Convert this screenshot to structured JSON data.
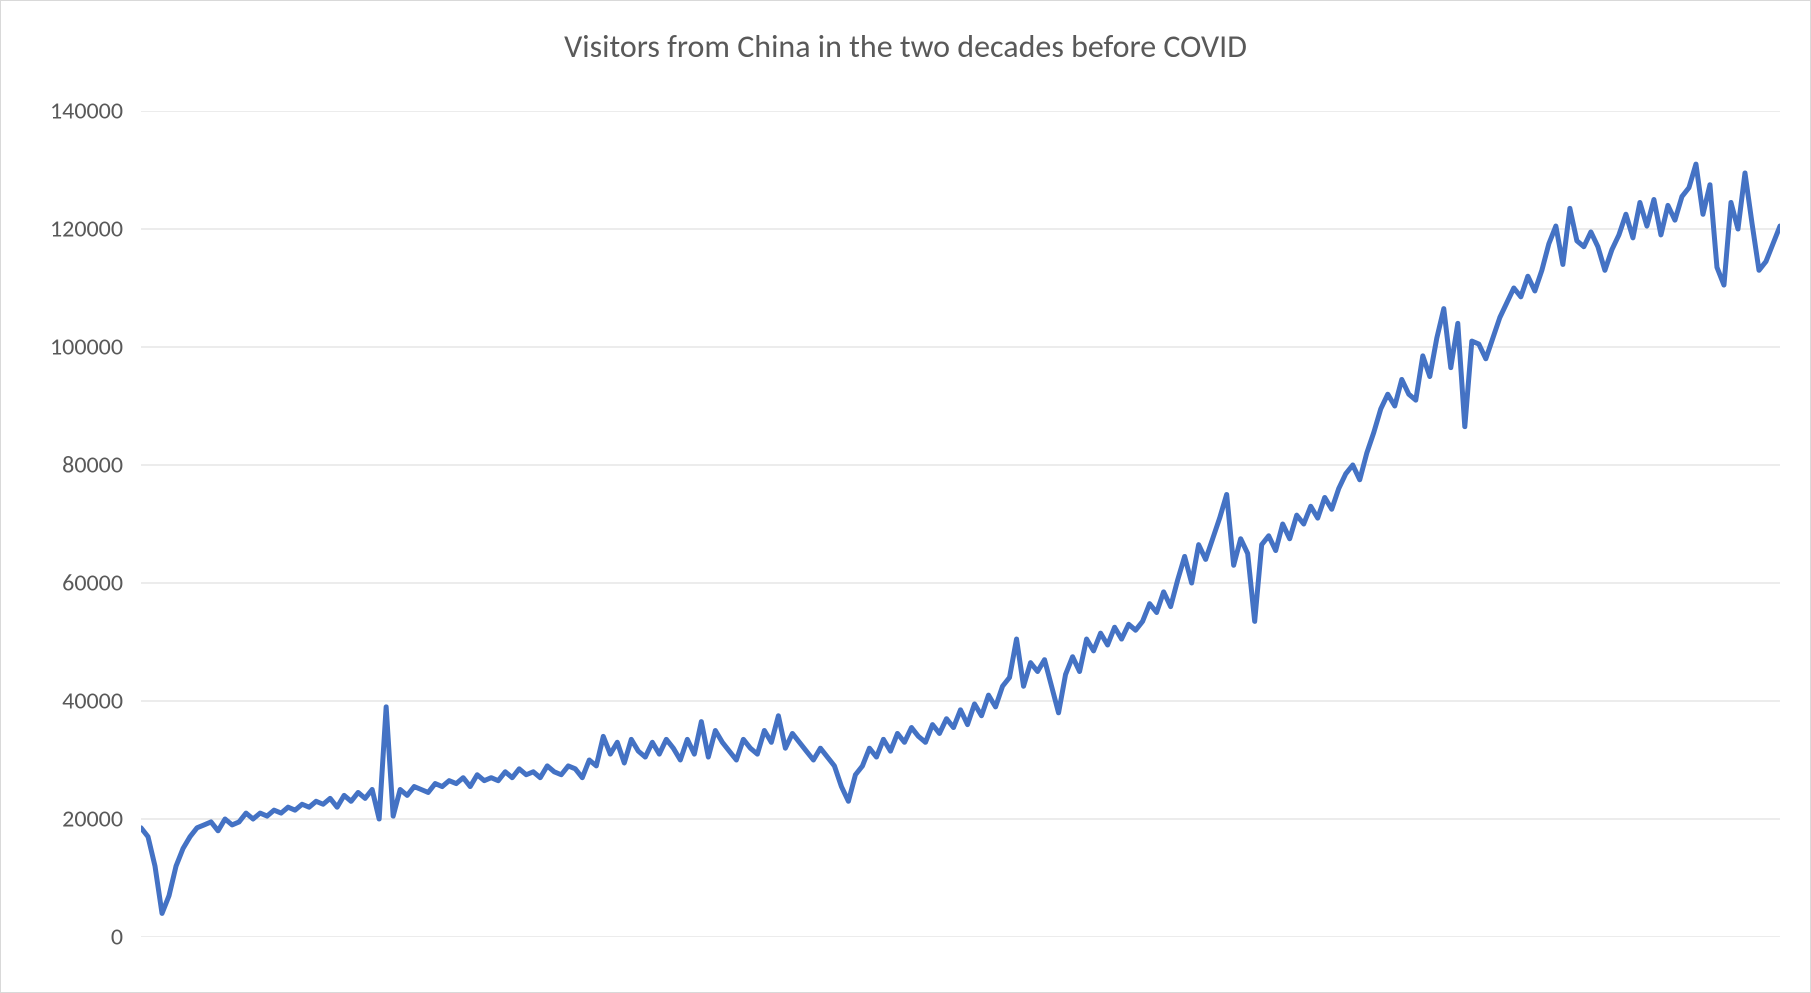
{
  "chart": {
    "type": "line",
    "title": "Visitors from China in the two decades before COVID",
    "title_fontsize": 32,
    "title_color": "#595959",
    "background_color": "#ffffff",
    "border_color": "#d9d9d9",
    "grid_color": "#d9d9d9",
    "axis_label_color": "#595959",
    "axis_label_fontsize": 24,
    "line_color": "#4472c4",
    "line_width": 5,
    "ylim": [
      0,
      140000
    ],
    "ytick_step": 20000,
    "ytick_labels": [
      "0",
      "20000",
      "40000",
      "60000",
      "80000",
      "100000",
      "120000",
      "140000"
    ],
    "values": [
      18500,
      17000,
      12000,
      4000,
      7000,
      12000,
      15000,
      17000,
      18500,
      19000,
      19500,
      18000,
      20000,
      19000,
      19500,
      21000,
      20000,
      21000,
      20500,
      21500,
      21000,
      22000,
      21500,
      22500,
      22000,
      23000,
      22500,
      23500,
      22000,
      24000,
      23000,
      24500,
      23500,
      25000,
      20000,
      39000,
      20500,
      25000,
      24000,
      25500,
      25000,
      24500,
      26000,
      25500,
      26500,
      26000,
      27000,
      25500,
      27500,
      26500,
      27000,
      26500,
      28000,
      27000,
      28500,
      27500,
      28000,
      27000,
      29000,
      28000,
      27500,
      29000,
      28500,
      27000,
      30000,
      29000,
      34000,
      31000,
      33000,
      29500,
      33500,
      31500,
      30500,
      33000,
      31000,
      33500,
      32000,
      30000,
      33500,
      31000,
      36500,
      30500,
      35000,
      33000,
      31500,
      30000,
      33500,
      32000,
      31000,
      35000,
      33000,
      37500,
      32000,
      34500,
      33000,
      31500,
      30000,
      32000,
      30500,
      29000,
      25500,
      23000,
      27500,
      29000,
      32000,
      30500,
      33500,
      31500,
      34500,
      33000,
      35500,
      34000,
      33000,
      36000,
      34500,
      37000,
      35500,
      38500,
      36000,
      39500,
      37500,
      41000,
      39000,
      42500,
      44000,
      50500,
      42500,
      46500,
      45000,
      47000,
      42500,
      38000,
      44500,
      47500,
      45000,
      50500,
      48500,
      51500,
      49500,
      52500,
      50500,
      53000,
      52000,
      53500,
      56500,
      55000,
      58500,
      56000,
      60500,
      64500,
      60000,
      66500,
      64000,
      67500,
      71000,
      75000,
      63000,
      67500,
      65000,
      53500,
      66500,
      68000,
      65500,
      70000,
      67500,
      71500,
      70000,
      73000,
      71000,
      74500,
      72500,
      76000,
      78500,
      80000,
      77500,
      82000,
      85500,
      89500,
      92000,
      90000,
      94500,
      92000,
      91000,
      98500,
      95000,
      101500,
      106500,
      96500,
      104000,
      86500,
      101000,
      100500,
      98000,
      101500,
      105000,
      107500,
      110000,
      108500,
      112000,
      109500,
      113000,
      117500,
      120500,
      114000,
      123500,
      118000,
      117000,
      119500,
      117000,
      113000,
      116500,
      119000,
      122500,
      118500,
      124500,
      120500,
      125000,
      119000,
      124000,
      121500,
      125500,
      127000,
      131000,
      122500,
      127500,
      113500,
      110500,
      124500,
      120000,
      129500,
      121000,
      113000,
      114500,
      117500,
      120500
    ]
  }
}
